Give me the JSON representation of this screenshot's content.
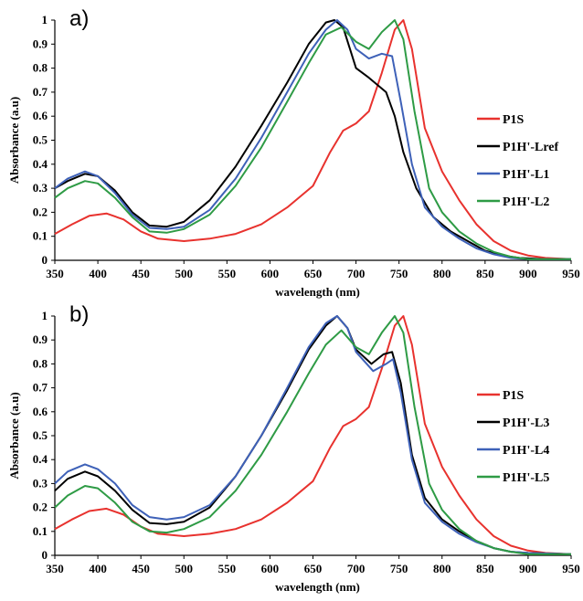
{
  "chart_data": [
    {
      "type": "line",
      "panel_label": "a)",
      "xlabel": "wavelength (nm)",
      "ylabel": "Absorbance (a.u)",
      "xlim": [
        350,
        950
      ],
      "ylim": [
        0,
        1
      ],
      "xticks": [
        350,
        400,
        450,
        500,
        550,
        600,
        650,
        700,
        750,
        800,
        850,
        900,
        950
      ],
      "yticks": [
        0,
        0.1,
        0.2,
        0.3,
        0.4,
        0.5,
        0.6,
        0.7,
        0.8,
        0.9,
        1
      ],
      "grid": false,
      "legend_position": "right",
      "series": [
        {
          "name": "P1S",
          "color": "#e8322e",
          "x": [
            350,
            370,
            390,
            410,
            430,
            450,
            470,
            500,
            530,
            560,
            590,
            620,
            650,
            670,
            685,
            700,
            715,
            730,
            745,
            755,
            765,
            780,
            800,
            820,
            840,
            860,
            880,
            900,
            920,
            950
          ],
          "y": [
            0.11,
            0.15,
            0.185,
            0.195,
            0.17,
            0.12,
            0.09,
            0.08,
            0.09,
            0.11,
            0.15,
            0.22,
            0.31,
            0.45,
            0.54,
            0.57,
            0.62,
            0.78,
            0.96,
            1.0,
            0.88,
            0.55,
            0.37,
            0.25,
            0.15,
            0.08,
            0.04,
            0.02,
            0.01,
            0.005
          ]
        },
        {
          "name": "P1H'-Lref",
          "color": "#000000",
          "x": [
            350,
            365,
            385,
            400,
            420,
            440,
            460,
            480,
            500,
            530,
            560,
            590,
            620,
            645,
            665,
            675,
            685,
            700,
            715,
            735,
            745,
            755,
            770,
            790,
            810,
            830,
            850,
            870,
            890,
            920,
            950
          ],
          "y": [
            0.3,
            0.33,
            0.36,
            0.35,
            0.29,
            0.2,
            0.145,
            0.14,
            0.16,
            0.25,
            0.39,
            0.56,
            0.74,
            0.9,
            0.99,
            1.0,
            0.97,
            0.8,
            0.76,
            0.7,
            0.6,
            0.45,
            0.3,
            0.18,
            0.12,
            0.08,
            0.04,
            0.02,
            0.01,
            0.005,
            0.005
          ]
        },
        {
          "name": "P1H'-L1",
          "color": "#3e61b8",
          "x": [
            350,
            365,
            385,
            400,
            420,
            440,
            460,
            480,
            500,
            530,
            560,
            590,
            620,
            645,
            665,
            678,
            690,
            700,
            715,
            730,
            742,
            752,
            765,
            780,
            800,
            820,
            840,
            860,
            880,
            900,
            950
          ],
          "y": [
            0.3,
            0.34,
            0.37,
            0.35,
            0.28,
            0.19,
            0.135,
            0.13,
            0.14,
            0.21,
            0.34,
            0.51,
            0.7,
            0.86,
            0.96,
            1.0,
            0.96,
            0.88,
            0.84,
            0.86,
            0.85,
            0.66,
            0.4,
            0.22,
            0.14,
            0.09,
            0.05,
            0.025,
            0.01,
            0.005,
            0.005
          ]
        },
        {
          "name": "P1H'-L2",
          "color": "#2e9b45",
          "x": [
            350,
            365,
            385,
            400,
            420,
            440,
            460,
            480,
            500,
            530,
            560,
            590,
            620,
            645,
            665,
            683,
            700,
            715,
            730,
            745,
            755,
            768,
            785,
            800,
            820,
            840,
            860,
            880,
            900,
            950
          ],
          "y": [
            0.26,
            0.3,
            0.33,
            0.32,
            0.26,
            0.18,
            0.12,
            0.115,
            0.13,
            0.19,
            0.31,
            0.47,
            0.66,
            0.82,
            0.94,
            0.97,
            0.91,
            0.88,
            0.95,
            1.0,
            0.92,
            0.62,
            0.3,
            0.2,
            0.12,
            0.07,
            0.035,
            0.015,
            0.005,
            0.005
          ]
        }
      ]
    },
    {
      "type": "line",
      "panel_label": "b)",
      "xlabel": "wavelength (nm)",
      "ylabel": "Absorbance (a.u)",
      "xlim": [
        350,
        950
      ],
      "ylim": [
        0,
        1
      ],
      "xticks": [
        350,
        400,
        450,
        500,
        550,
        600,
        650,
        700,
        750,
        800,
        850,
        900,
        950
      ],
      "yticks": [
        0,
        0.1,
        0.2,
        0.3,
        0.4,
        0.5,
        0.6,
        0.7,
        0.8,
        0.9,
        1
      ],
      "grid": false,
      "legend_position": "right",
      "series": [
        {
          "name": "P1S",
          "color": "#e8322e",
          "x": [
            350,
            370,
            390,
            410,
            430,
            450,
            470,
            500,
            530,
            560,
            590,
            620,
            650,
            670,
            685,
            700,
            715,
            730,
            745,
            755,
            765,
            780,
            800,
            820,
            840,
            860,
            880,
            900,
            920,
            950
          ],
          "y": [
            0.11,
            0.15,
            0.185,
            0.195,
            0.17,
            0.12,
            0.09,
            0.08,
            0.09,
            0.11,
            0.15,
            0.22,
            0.31,
            0.45,
            0.54,
            0.57,
            0.62,
            0.78,
            0.96,
            1.0,
            0.88,
            0.55,
            0.37,
            0.25,
            0.15,
            0.08,
            0.04,
            0.02,
            0.01,
            0.005
          ]
        },
        {
          "name": "P1H'-L3",
          "color": "#000000",
          "x": [
            350,
            365,
            385,
            400,
            420,
            440,
            460,
            480,
            500,
            530,
            560,
            590,
            620,
            645,
            665,
            678,
            690,
            700,
            718,
            732,
            742,
            752,
            765,
            780,
            800,
            820,
            840,
            860,
            880,
            900,
            950
          ],
          "y": [
            0.27,
            0.32,
            0.35,
            0.33,
            0.27,
            0.19,
            0.135,
            0.13,
            0.14,
            0.2,
            0.33,
            0.5,
            0.69,
            0.86,
            0.96,
            1.0,
            0.95,
            0.86,
            0.8,
            0.84,
            0.85,
            0.72,
            0.42,
            0.24,
            0.15,
            0.1,
            0.06,
            0.03,
            0.015,
            0.01,
            0.005
          ]
        },
        {
          "name": "P1H'-L4",
          "color": "#3e61b8",
          "x": [
            350,
            365,
            385,
            400,
            420,
            440,
            460,
            480,
            500,
            530,
            560,
            590,
            620,
            645,
            665,
            678,
            690,
            700,
            720,
            735,
            743,
            752,
            765,
            780,
            800,
            820,
            840,
            860,
            880,
            900,
            950
          ],
          "y": [
            0.3,
            0.35,
            0.38,
            0.36,
            0.3,
            0.21,
            0.16,
            0.15,
            0.16,
            0.21,
            0.33,
            0.5,
            0.7,
            0.87,
            0.97,
            1.0,
            0.95,
            0.85,
            0.77,
            0.8,
            0.82,
            0.68,
            0.4,
            0.22,
            0.14,
            0.09,
            0.055,
            0.03,
            0.015,
            0.01,
            0.005
          ]
        },
        {
          "name": "P1H'-L5",
          "color": "#2e9b45",
          "x": [
            350,
            365,
            385,
            400,
            420,
            440,
            460,
            480,
            500,
            530,
            560,
            590,
            620,
            645,
            665,
            683,
            700,
            715,
            730,
            745,
            755,
            768,
            785,
            800,
            820,
            840,
            860,
            880,
            900,
            950
          ],
          "y": [
            0.2,
            0.25,
            0.29,
            0.28,
            0.22,
            0.14,
            0.1,
            0.095,
            0.11,
            0.16,
            0.27,
            0.42,
            0.6,
            0.76,
            0.88,
            0.94,
            0.87,
            0.84,
            0.93,
            1.0,
            0.93,
            0.62,
            0.3,
            0.19,
            0.11,
            0.06,
            0.03,
            0.015,
            0.005,
            0.005
          ]
        }
      ]
    }
  ]
}
